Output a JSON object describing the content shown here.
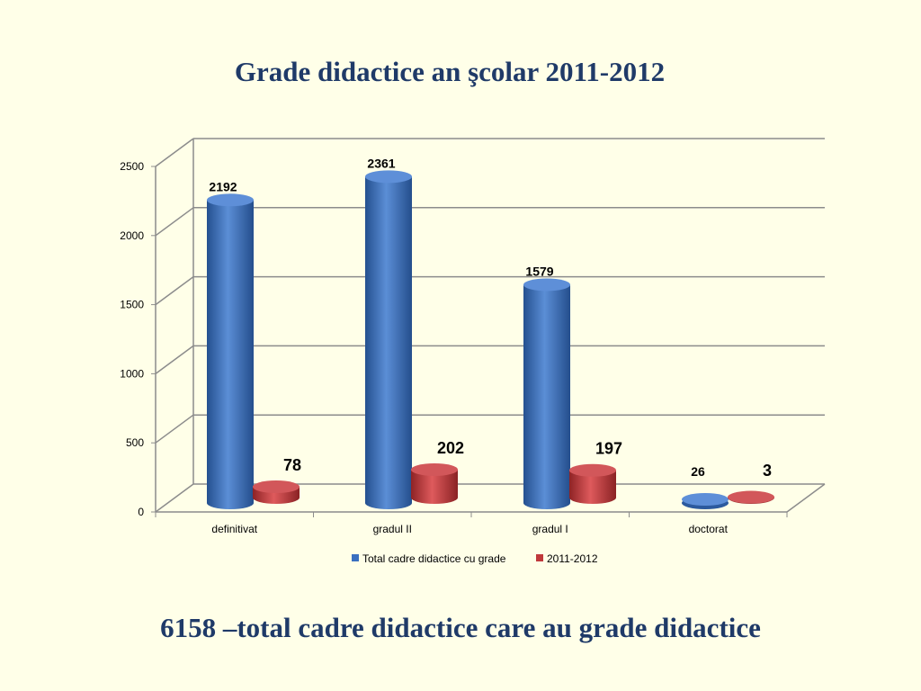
{
  "slide": {
    "title": "Grade didactice an şcolar 2011-2012",
    "footer": "6158 –total cadre didactice care au grade didactice"
  },
  "chart_data": {
    "type": "bar",
    "title": "Grade didactice an şcolar 2011-2012",
    "xlabel": "",
    "ylabel": "",
    "categories": [
      "definitivat",
      "gradul II",
      "gradul I",
      "doctorat"
    ],
    "series": [
      {
        "name": "Total cadre didactice cu grade",
        "values": [
          2192,
          2361,
          1579,
          26
        ],
        "color": "#3A6FC0"
      },
      {
        "name": "2011-2012",
        "values": [
          78,
          202,
          197,
          3
        ],
        "color": "#C0393B"
      }
    ],
    "y_ticks": [
      "0",
      "500",
      "1000",
      "1500",
      "2000",
      "2500"
    ],
    "ylim": [
      0,
      2500
    ],
    "grid": true,
    "legend_position": "bottom"
  }
}
